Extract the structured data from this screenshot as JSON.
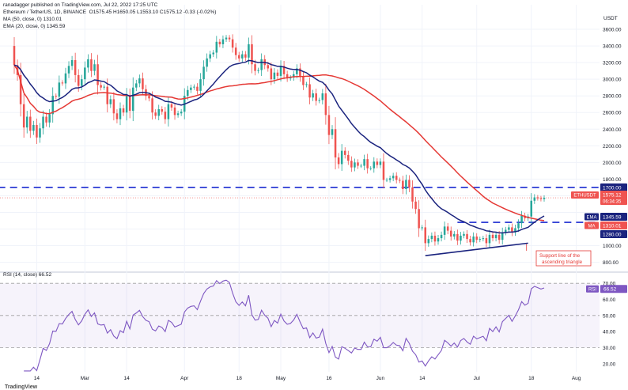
{
  "header": {
    "author_line": "ranadagger published on TradingView.com, Jul 22, 2022 17:25 UTC",
    "symbol_line": "Ethereum / TetherUS, 1D, BINANCE",
    "ohlc": "O1575.45  H1650.05  L1553.10  C1575.12  -0.33 (-0.02%)",
    "ma_line": "MA (50, close, 0)  1310.01",
    "ema_line": "EMA (20, close, 0)  1345.59",
    "rsi_line": "RSI (14, close)  66.52",
    "logo": "TradingView"
  },
  "colors": {
    "up": "#26a69a",
    "down": "#ef5350",
    "ma": "#e53935",
    "ema": "#1a237e",
    "dashed": "#1a2ad1",
    "rsi": "#7e57c2",
    "label_blue": "#2962ff",
    "annotation": "#e53935"
  },
  "chart_data": [
    {
      "type": "candlestick",
      "title": "Ethereum / TetherUS, 1D, BINANCE",
      "currency": "USDT",
      "ylim": [
        720,
        3800
      ],
      "y_ticks": [
        800,
        1000,
        1200,
        1400,
        1600,
        1800,
        2000,
        2200,
        2400,
        2600,
        2800,
        3000,
        3200,
        3400,
        3600
      ],
      "x_ticks": [
        "Feb",
        "14",
        "Mar",
        "14",
        "Apr",
        "18",
        "May",
        "16",
        "Jun",
        "14",
        "Jul",
        "18",
        "Aug"
      ],
      "x_ticks_day": [
        31,
        44,
        59,
        72,
        90,
        107,
        120,
        135,
        151,
        164,
        181,
        198,
        212
      ],
      "last_day": 202,
      "close": [
        3170,
        3050,
        2700,
        2420,
        2550,
        2380,
        2450,
        2300,
        2410,
        2550,
        2480,
        2580,
        2800,
        2790,
        2960,
        2950,
        3070,
        3160,
        3230,
        3050,
        2920,
        3000,
        3140,
        3240,
        3100,
        3180,
        2930,
        2900,
        2910,
        2700,
        2760,
        2590,
        2520,
        2650,
        2600,
        2800,
        2620,
        2900,
        2950,
        3010,
        2880,
        2800,
        2770,
        2600,
        2560,
        2640,
        2610,
        2520,
        2700,
        2660,
        2570,
        2590,
        2610,
        2800,
        2870,
        2900,
        2910,
        2860,
        3000,
        3150,
        3250,
        3300,
        3320,
        3450,
        3420,
        3480,
        3500,
        3480,
        3380,
        3290,
        3250,
        3300,
        3260,
        3420,
        3180,
        3100,
        3110,
        3240,
        3170,
        3130,
        3000,
        3080,
        3040,
        3160,
        3060,
        3010,
        3020,
        3060,
        3130,
        3030,
        2930,
        2940,
        2780,
        2830,
        2740,
        2750,
        2830,
        2570,
        2330,
        2400,
        2060,
        1980,
        2140,
        2090,
        2020,
        1940,
        2000,
        1960,
        1960,
        2040,
        1930,
        1930,
        2010,
        1970,
        2010,
        1790,
        1790,
        1810,
        1840,
        1790,
        1780,
        1680,
        1790,
        1700,
        1530,
        1440,
        1210,
        1220,
        1030,
        1080,
        1120,
        1050,
        1090,
        1130,
        1230,
        1180,
        1110,
        1140,
        1060,
        1120,
        1140,
        1080,
        1040,
        1110,
        1070,
        1080,
        1090,
        1030,
        1130,
        1090,
        1130,
        1070,
        1160,
        1190,
        1220,
        1160,
        1210,
        1270,
        1360,
        1330,
        1350,
        1540,
        1580,
        1570,
        1560,
        1575
      ]
    },
    {
      "type": "line",
      "name": "MA (50, close, 0)",
      "last_value": 1310.01
    },
    {
      "type": "line",
      "name": "EMA (20, close, 0)",
      "last_value": 1345.59
    },
    {
      "type": "line",
      "name": "RSI (14, close)",
      "last_value": 66.52,
      "ylim": [
        15,
        75
      ],
      "y_ticks": [
        20,
        30,
        40,
        50,
        60,
        70
      ],
      "bands": [
        30,
        50,
        70
      ]
    }
  ],
  "levels": {
    "resistance": 1700,
    "support": 1280,
    "resistance_label": "1700.00",
    "support_label": "1280.00",
    "resistance_start_day": 32,
    "support_start_day": 175
  },
  "trendline": {
    "start_day": 165,
    "start_value": 880,
    "end_day": 197,
    "end_value": 1030
  },
  "price_tags": {
    "symbol": "ETHUSDT",
    "price": "1575.12",
    "countdown": "06:34:35",
    "ema_label": "EMA",
    "ema_value": "1345.59",
    "ma_label": "MA",
    "ma_value": "1310.01",
    "rsi_label": "RSI",
    "rsi_value": "66.52"
  },
  "annotation": {
    "line1": "Support line of the",
    "line2": "ascending triangle"
  },
  "axis_title": "USDT"
}
